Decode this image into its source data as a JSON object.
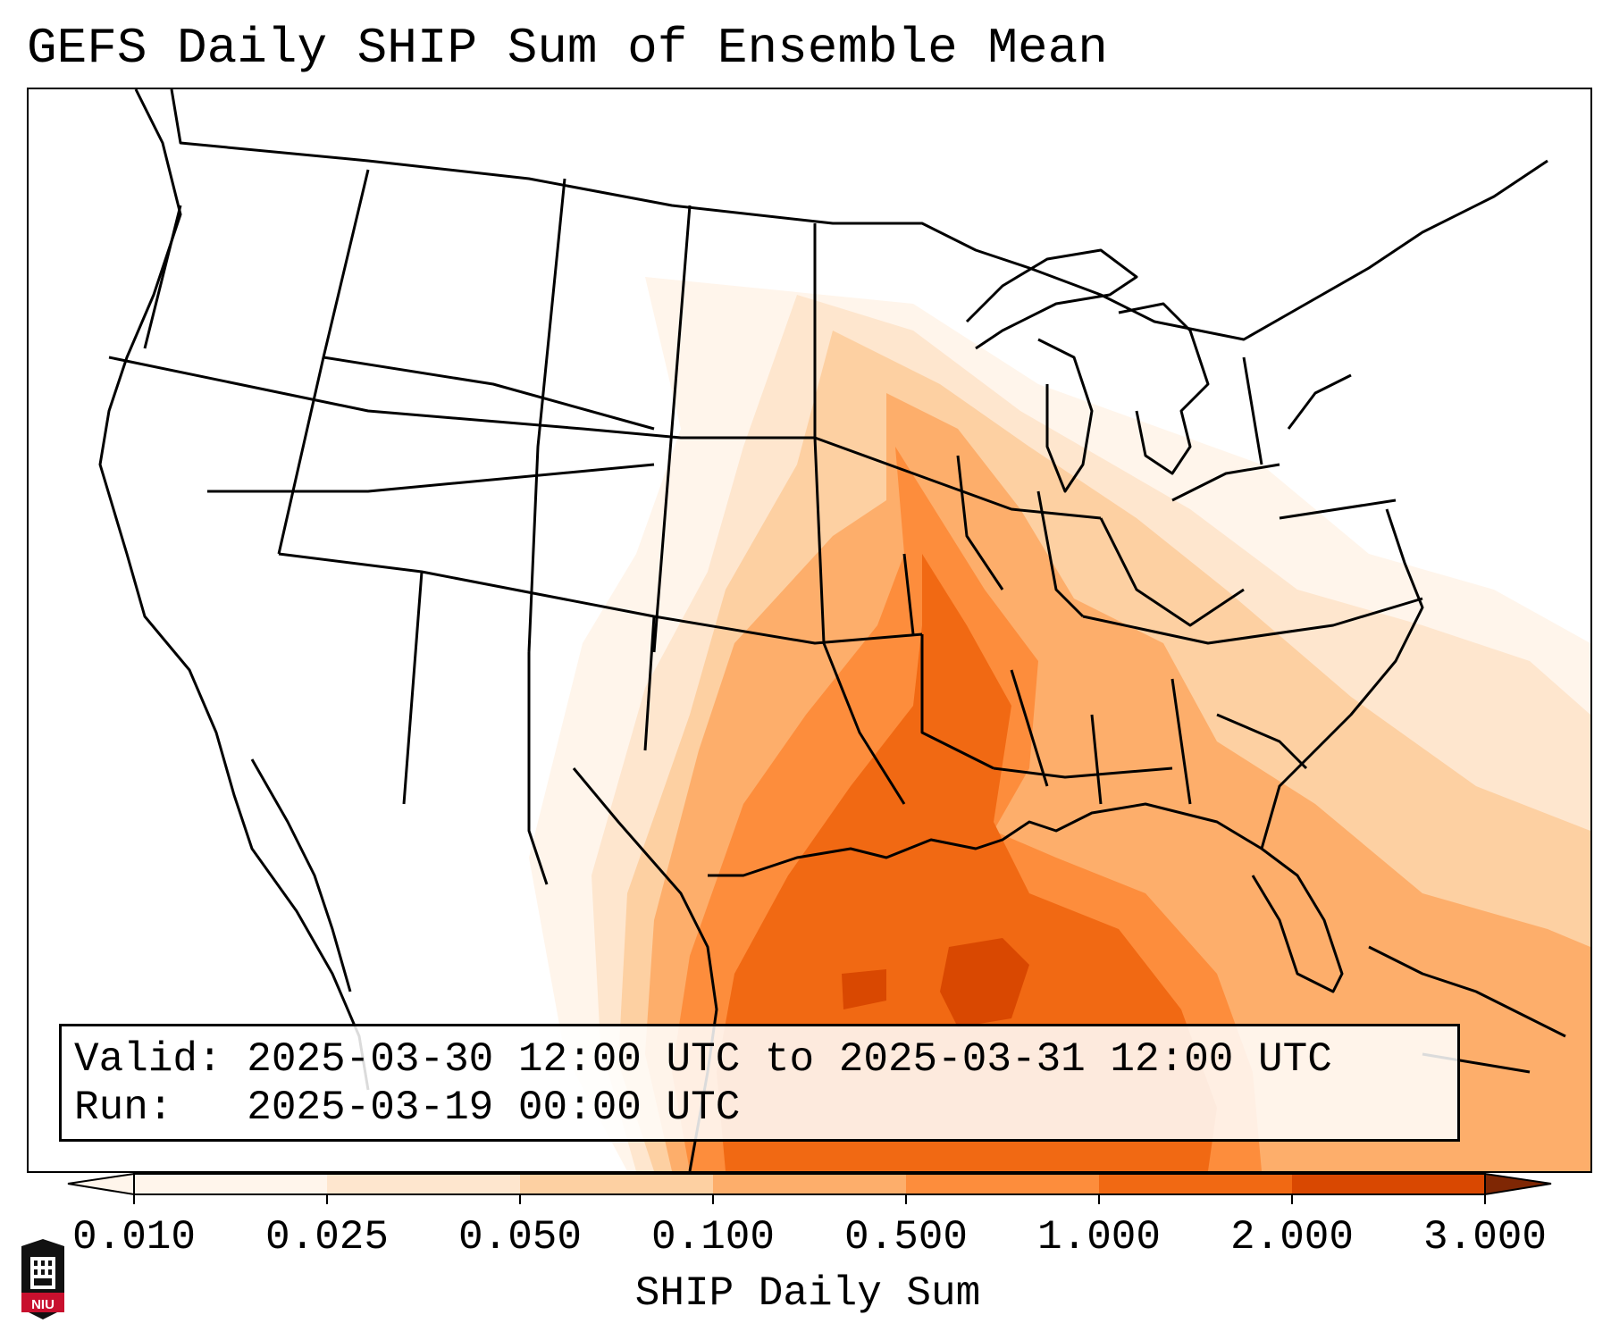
{
  "title": "GEFS Daily SHIP Sum of Ensemble Mean",
  "info": {
    "valid_line": "Valid: 2025-03-30 12:00 UTC to 2025-03-31 12:00 UTC",
    "run_line": "Run:   2025-03-19 00:00 UTC"
  },
  "colorbar": {
    "label": "SHIP Daily Sum",
    "ticks": [
      "0.010",
      "0.025",
      "0.050",
      "0.100",
      "0.500",
      "1.000",
      "2.000",
      "3.000"
    ],
    "colors": [
      "#fff5eb",
      "#fee6ce",
      "#fdd0a2",
      "#fdae6b",
      "#fd8d3c",
      "#f16913",
      "#d94801"
    ]
  },
  "logo": {
    "text": "NIU"
  }
}
